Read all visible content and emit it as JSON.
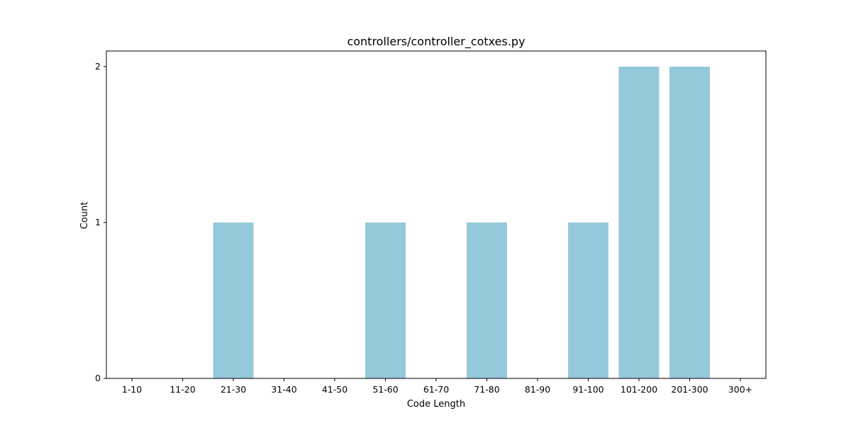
{
  "chart_data": {
    "type": "bar",
    "title": "controllers/controller_cotxes.py",
    "xlabel": "Code Length",
    "ylabel": "Count",
    "categories": [
      "1-10",
      "11-20",
      "21-30",
      "31-40",
      "41-50",
      "51-60",
      "61-70",
      "71-80",
      "81-90",
      "91-100",
      "101-200",
      "201-300",
      "300+"
    ],
    "values": [
      0,
      0,
      1,
      0,
      0,
      1,
      0,
      1,
      0,
      1,
      2,
      2,
      0
    ],
    "yticks": [
      0,
      1,
      2
    ],
    "ylim": [
      0,
      2.1
    ],
    "grid": false,
    "bar_color": "#96c8dc"
  }
}
